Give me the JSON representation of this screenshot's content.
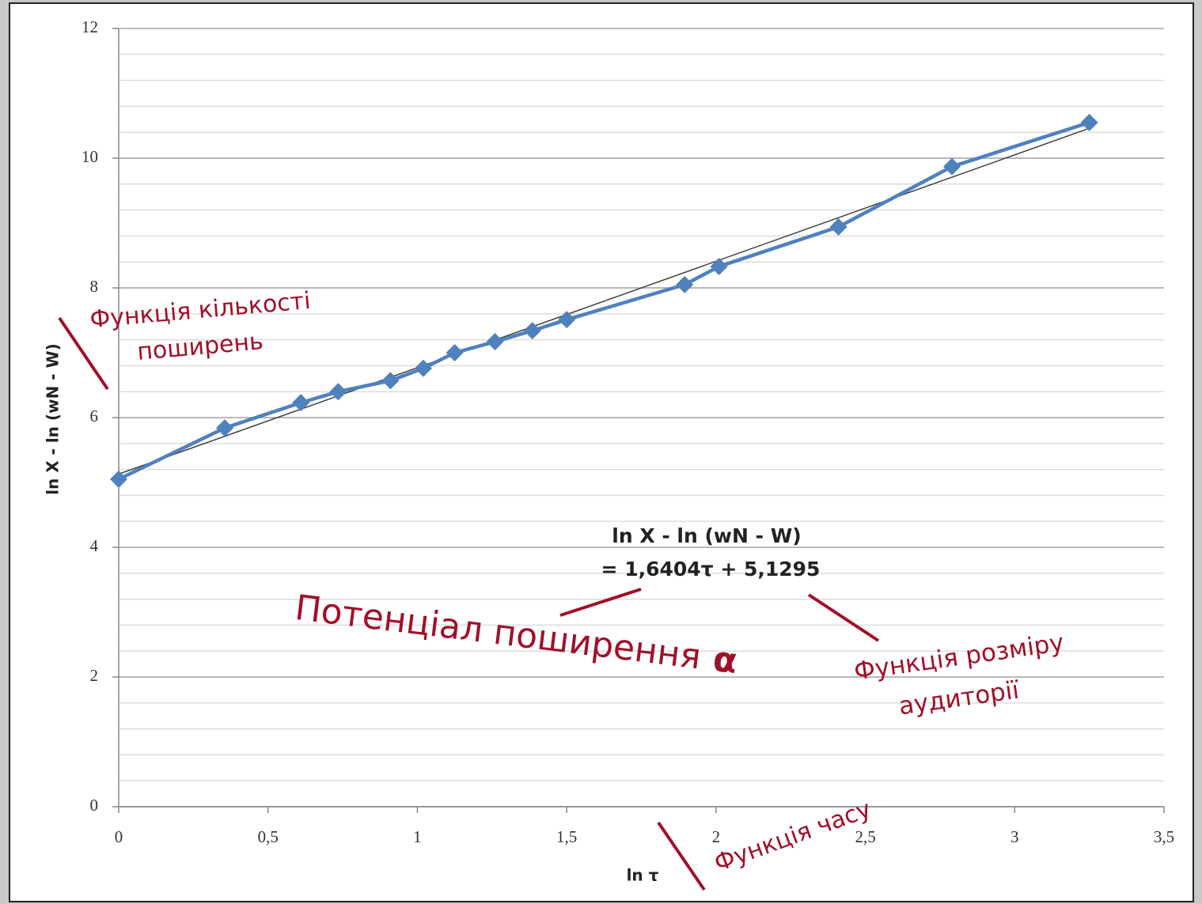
{
  "chart_data": {
    "type": "line",
    "x_label": "ln τ",
    "y_label": "ln X - ln (wN - W)",
    "x": [
      0,
      0.355,
      0.61,
      0.735,
      0.91,
      1.02,
      1.125,
      1.26,
      1.385,
      1.5,
      1.895,
      2.01,
      2.41,
      2.79,
      3.25
    ],
    "series": [
      {
        "name": "ln X - ln (wN - W)",
        "color": "#4f81bd",
        "values": [
          5.05,
          5.84,
          6.23,
          6.4,
          6.57,
          6.76,
          7.0,
          7.17,
          7.34,
          7.51,
          8.05,
          8.33,
          8.94,
          9.87,
          10.55
        ]
      }
    ],
    "trendline": {
      "slope": 1.6404,
      "intercept": 5.1295,
      "color": "#404040",
      "equation": [
        "ln X - ln (wN - W)",
        "= 1,6404τ + 5,1295"
      ]
    },
    "xlim": [
      0,
      3.5
    ],
    "xticks": [
      0,
      {
        "value": 0.5,
        "label": "0,5"
      },
      1,
      {
        "value": 1.5,
        "label": "1,5"
      },
      2,
      {
        "value": 2.5,
        "label": "2,5"
      },
      3,
      {
        "value": 3.5,
        "label": "3,5"
      }
    ],
    "ylim": [
      0,
      12
    ],
    "yticks": [
      0,
      2,
      4,
      6,
      8,
      10,
      12
    ],
    "grid": true,
    "minor_grid_step": 0.4,
    "annotations": [
      {
        "lines": [
          "Функція кількості",
          "поширень"
        ]
      },
      {
        "lines": [
          "Потенціал поширення"
        ],
        "symbol": "α"
      },
      {
        "lines": [
          "Функція розміру",
          "аудиторії"
        ]
      },
      {
        "lines": [
          "Функція часу"
        ]
      }
    ]
  }
}
